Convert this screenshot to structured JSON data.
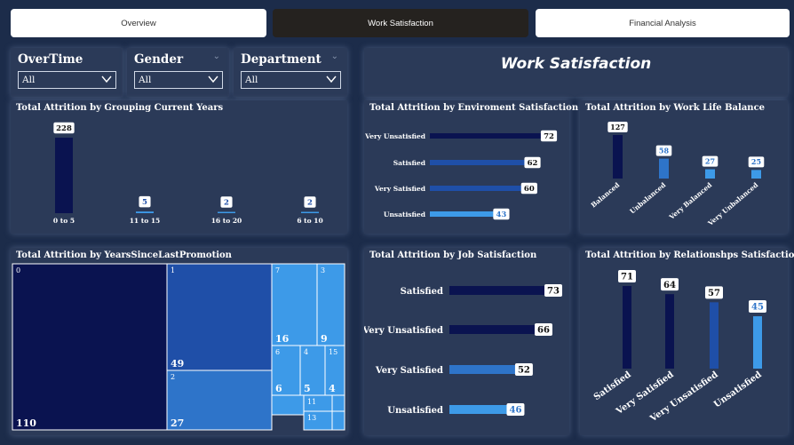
{
  "nav": {
    "overview": "Overview",
    "work_satisfaction": "Work Satisfaction",
    "financial_analysis": "Financial Analysis"
  },
  "slicers": {
    "overtime": {
      "title": "OverTime",
      "value": "All"
    },
    "gender": {
      "title": "Gender",
      "value": "All"
    },
    "department": {
      "title": "Department",
      "value": "All"
    }
  },
  "page_title": "Work Satisfaction",
  "colors": {
    "navy": "#0a1350",
    "mid_blue": "#1f4fa8",
    "blue": "#2e74c9",
    "light_blue": "#3d9ae8"
  },
  "chart_data": [
    {
      "id": "current_years",
      "type": "bar",
      "title": "Total Attrition by Grouping Current Years",
      "categories": [
        "0 to 5",
        "11 to 15",
        "16 to 20",
        "6 to 10"
      ],
      "values": [
        228,
        5,
        2,
        2
      ]
    },
    {
      "id": "environment",
      "type": "bar",
      "orientation": "horizontal",
      "title": "Total Attrition by Enviroment Satisfaction",
      "categories": [
        "Very Unsatisfied",
        "Satisfied",
        "Very Satisfied",
        "Unsatisfied"
      ],
      "values": [
        72,
        62,
        60,
        43
      ]
    },
    {
      "id": "work_life",
      "type": "bar",
      "title": "Total Attrition by Work Life Balance",
      "categories": [
        "Balanced",
        "Unbalanced",
        "Very Balanced",
        "Very Unbalanced"
      ],
      "values": [
        127,
        58,
        27,
        25
      ]
    },
    {
      "id": "promotion",
      "type": "treemap",
      "title": "Total Attrition by YearsSinceLastPromotion",
      "labels": [
        "0",
        "1",
        "2",
        "7",
        "3",
        "6",
        "4",
        "15",
        "11",
        "13"
      ],
      "values": [
        110,
        49,
        27,
        16,
        9,
        6,
        5,
        4,
        null,
        null
      ]
    },
    {
      "id": "job",
      "type": "bar",
      "orientation": "horizontal",
      "title": "Total Attrition by Job Satisfaction",
      "categories": [
        "Satisfied",
        "Very Unsatisfied",
        "Very Satisfied",
        "Unsatisfied"
      ],
      "values": [
        73,
        66,
        52,
        46
      ]
    },
    {
      "id": "relationship",
      "type": "bar",
      "title": "Total Attrition by Relationshps Satisfaction",
      "categories": [
        "Satisfied",
        "Very Satisfied",
        "Very Unsatisfied",
        "Unsatisfied"
      ],
      "values": [
        71,
        64,
        57,
        45
      ]
    }
  ]
}
